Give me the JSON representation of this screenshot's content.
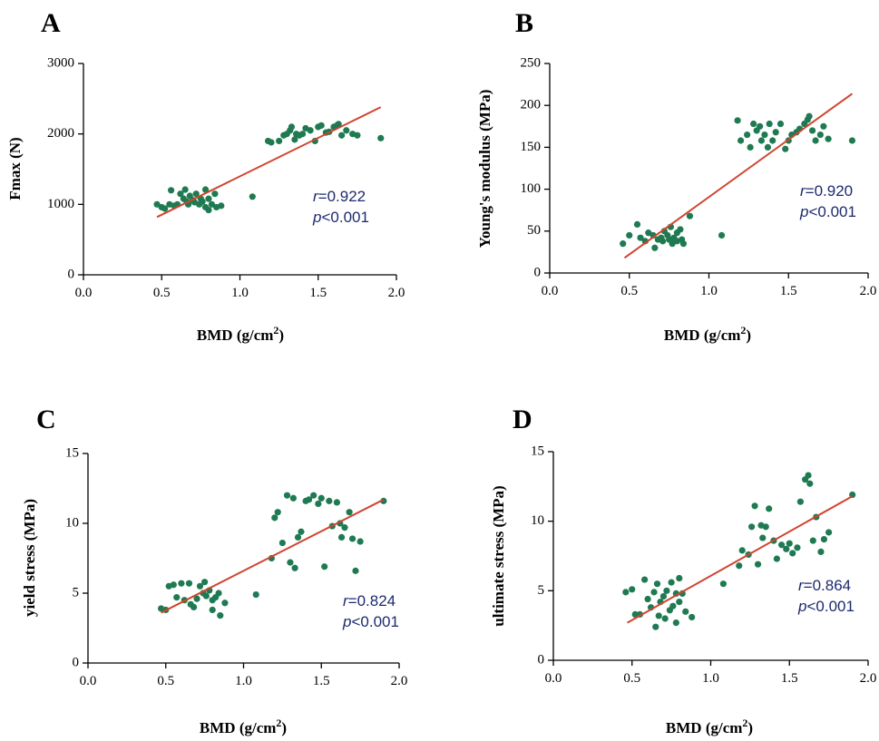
{
  "chart_data": [
    {
      "panel": "A",
      "type": "scatter",
      "xlabel": "BMD (g/cm",
      "xlabel_sup": "2",
      "xlabel_close": ")",
      "ylabel": "Fmax (N)",
      "xlim": [
        0,
        2
      ],
      "ylim": [
        0,
        3000
      ],
      "xticks": [
        0,
        0.5,
        1,
        1.5,
        2
      ],
      "xtick_labels": [
        "0.0",
        "0.5",
        "1.0",
        "1.5",
        "2.0"
      ],
      "yticks": [
        0,
        1000,
        2000,
        3000
      ],
      "ytick_labels": [
        "0",
        "1000",
        "2000",
        "3000"
      ],
      "r_label": "r",
      "r_value": "=0.922",
      "p_label": "p",
      "p_value": "<0.001",
      "fit": [
        [
          0.47,
          820
        ],
        [
          1.9,
          2380
        ]
      ],
      "points": [
        [
          0.47,
          1000
        ],
        [
          0.5,
          960
        ],
        [
          0.52,
          940
        ],
        [
          0.55,
          1000
        ],
        [
          0.56,
          1200
        ],
        [
          0.58,
          980
        ],
        [
          0.6,
          1000
        ],
        [
          0.62,
          1150
        ],
        [
          0.64,
          1080
        ],
        [
          0.65,
          1210
        ],
        [
          0.66,
          1040
        ],
        [
          0.67,
          1000
        ],
        [
          0.68,
          1120
        ],
        [
          0.7,
          1060
        ],
        [
          0.71,
          1030
        ],
        [
          0.72,
          1150
        ],
        [
          0.74,
          1000
        ],
        [
          0.75,
          1080
        ],
        [
          0.76,
          1040
        ],
        [
          0.78,
          1210
        ],
        [
          0.78,
          960
        ],
        [
          0.8,
          1080
        ],
        [
          0.8,
          920
        ],
        [
          0.82,
          1000
        ],
        [
          0.84,
          1150
        ],
        [
          0.85,
          960
        ],
        [
          0.88,
          980
        ],
        [
          1.08,
          1110
        ],
        [
          1.18,
          1900
        ],
        [
          1.2,
          1880
        ],
        [
          1.25,
          1900
        ],
        [
          1.28,
          1980
        ],
        [
          1.3,
          2000
        ],
        [
          1.32,
          2050
        ],
        [
          1.33,
          2100
        ],
        [
          1.35,
          1920
        ],
        [
          1.36,
          2000
        ],
        [
          1.38,
          1980
        ],
        [
          1.4,
          2000
        ],
        [
          1.42,
          2080
        ],
        [
          1.45,
          2050
        ],
        [
          1.48,
          1900
        ],
        [
          1.5,
          2100
        ],
        [
          1.52,
          2120
        ],
        [
          1.55,
          2020
        ],
        [
          1.57,
          2030
        ],
        [
          1.6,
          2100
        ],
        [
          1.62,
          2120
        ],
        [
          1.63,
          2140
        ],
        [
          1.65,
          1980
        ],
        [
          1.68,
          2050
        ],
        [
          1.72,
          2000
        ],
        [
          1.75,
          1980
        ],
        [
          1.9,
          1940
        ]
      ]
    },
    {
      "panel": "B",
      "type": "scatter",
      "xlabel": "BMD (g/cm",
      "xlabel_sup": "2",
      "xlabel_close": ")",
      "ylabel": "Young's modulus (MPa)",
      "xlim": [
        0,
        2
      ],
      "ylim": [
        0,
        250
      ],
      "xticks": [
        0,
        0.5,
        1,
        1.5,
        2
      ],
      "xtick_labels": [
        "0.0",
        "0.5",
        "1.0",
        "1.5",
        "2.0"
      ],
      "yticks": [
        0,
        50,
        100,
        150,
        200,
        250
      ],
      "ytick_labels": [
        "0",
        "50",
        "100",
        "150",
        "200",
        "250"
      ],
      "r_label": "r",
      "r_value": "=0.920",
      "p_label": "p",
      "p_value": "<0.001",
      "fit": [
        [
          0.47,
          18
        ],
        [
          1.9,
          214
        ]
      ],
      "points": [
        [
          0.46,
          35
        ],
        [
          0.5,
          45
        ],
        [
          0.55,
          58
        ],
        [
          0.57,
          42
        ],
        [
          0.6,
          38
        ],
        [
          0.62,
          48
        ],
        [
          0.65,
          45
        ],
        [
          0.66,
          30
        ],
        [
          0.68,
          40
        ],
        [
          0.7,
          42
        ],
        [
          0.71,
          38
        ],
        [
          0.72,
          50
        ],
        [
          0.74,
          45
        ],
        [
          0.75,
          40
        ],
        [
          0.76,
          55
        ],
        [
          0.77,
          35
        ],
        [
          0.78,
          42
        ],
        [
          0.8,
          48
        ],
        [
          0.8,
          38
        ],
        [
          0.82,
          52
        ],
        [
          0.83,
          40
        ],
        [
          0.84,
          35
        ],
        [
          0.88,
          68
        ],
        [
          1.08,
          45
        ],
        [
          1.18,
          182
        ],
        [
          1.2,
          158
        ],
        [
          1.24,
          165
        ],
        [
          1.26,
          150
        ],
        [
          1.28,
          178
        ],
        [
          1.3,
          170
        ],
        [
          1.32,
          175
        ],
        [
          1.33,
          158
        ],
        [
          1.35,
          165
        ],
        [
          1.37,
          150
        ],
        [
          1.38,
          178
        ],
        [
          1.4,
          158
        ],
        [
          1.42,
          168
        ],
        [
          1.45,
          178
        ],
        [
          1.48,
          148
        ],
        [
          1.5,
          158
        ],
        [
          1.52,
          165
        ],
        [
          1.55,
          168
        ],
        [
          1.57,
          172
        ],
        [
          1.6,
          178
        ],
        [
          1.62,
          183
        ],
        [
          1.63,
          187
        ],
        [
          1.65,
          170
        ],
        [
          1.67,
          158
        ],
        [
          1.7,
          165
        ],
        [
          1.72,
          175
        ],
        [
          1.75,
          160
        ],
        [
          1.9,
          158
        ]
      ]
    },
    {
      "panel": "C",
      "type": "scatter",
      "xlabel": "BMD (g/cm",
      "xlabel_sup": "2",
      "xlabel_close": ")",
      "ylabel": "yield stress (MPa)",
      "xlim": [
        0,
        2
      ],
      "ylim": [
        0,
        15
      ],
      "xticks": [
        0,
        0.5,
        1,
        1.5,
        2
      ],
      "xtick_labels": [
        "0.0",
        "0.5",
        "1.0",
        "1.5",
        "2.0"
      ],
      "yticks": [
        0,
        5,
        10,
        15
      ],
      "ytick_labels": [
        "0",
        "5",
        "10",
        "15"
      ],
      "r_label": "r",
      "r_value": "=0.824",
      "p_label": "p",
      "p_value": "<0.001",
      "fit": [
        [
          0.47,
          3.6
        ],
        [
          1.9,
          11.7
        ]
      ],
      "points": [
        [
          0.47,
          3.9
        ],
        [
          0.5,
          3.8
        ],
        [
          0.52,
          5.5
        ],
        [
          0.55,
          5.6
        ],
        [
          0.57,
          4.7
        ],
        [
          0.6,
          5.7
        ],
        [
          0.62,
          4.5
        ],
        [
          0.65,
          5.7
        ],
        [
          0.66,
          4.2
        ],
        [
          0.68,
          4.0
        ],
        [
          0.7,
          4.6
        ],
        [
          0.72,
          5.5
        ],
        [
          0.74,
          5.0
        ],
        [
          0.75,
          5.8
        ],
        [
          0.76,
          4.8
        ],
        [
          0.78,
          5.2
        ],
        [
          0.8,
          4.5
        ],
        [
          0.8,
          3.8
        ],
        [
          0.82,
          4.7
        ],
        [
          0.84,
          5.0
        ],
        [
          0.85,
          3.4
        ],
        [
          0.88,
          4.3
        ],
        [
          1.08,
          4.9
        ],
        [
          1.18,
          7.5
        ],
        [
          1.2,
          10.4
        ],
        [
          1.22,
          10.8
        ],
        [
          1.25,
          8.6
        ],
        [
          1.28,
          12.0
        ],
        [
          1.3,
          7.2
        ],
        [
          1.32,
          11.8
        ],
        [
          1.33,
          6.8
        ],
        [
          1.35,
          9.0
        ],
        [
          1.37,
          9.4
        ],
        [
          1.4,
          11.6
        ],
        [
          1.42,
          11.7
        ],
        [
          1.45,
          12.0
        ],
        [
          1.48,
          11.4
        ],
        [
          1.5,
          11.8
        ],
        [
          1.52,
          6.9
        ],
        [
          1.55,
          11.6
        ],
        [
          1.57,
          9.8
        ],
        [
          1.6,
          11.5
        ],
        [
          1.62,
          10.0
        ],
        [
          1.63,
          9.0
        ],
        [
          1.65,
          9.7
        ],
        [
          1.68,
          10.8
        ],
        [
          1.7,
          8.9
        ],
        [
          1.72,
          6.6
        ],
        [
          1.75,
          8.7
        ],
        [
          1.9,
          11.6
        ]
      ]
    },
    {
      "panel": "D",
      "type": "scatter",
      "xlabel": "BMD (g/cm",
      "xlabel_sup": "2",
      "xlabel_close": ")",
      "ylabel": "ultimate stress (MPa)",
      "xlim": [
        0,
        2
      ],
      "ylim": [
        0,
        15
      ],
      "xticks": [
        0,
        0.5,
        1,
        1.5,
        2
      ],
      "xtick_labels": [
        "0.0",
        "0.5",
        "1.0",
        "1.5",
        "2.0"
      ],
      "yticks": [
        0,
        5,
        10,
        15
      ],
      "ytick_labels": [
        "0",
        "5",
        "10",
        "15"
      ],
      "r_label": "r",
      "r_value": "=0.864",
      "p_label": "p",
      "p_value": "<0.001",
      "fit": [
        [
          0.47,
          2.7
        ],
        [
          1.9,
          11.8
        ]
      ],
      "points": [
        [
          0.46,
          4.9
        ],
        [
          0.5,
          5.1
        ],
        [
          0.52,
          3.3
        ],
        [
          0.55,
          3.3
        ],
        [
          0.58,
          5.8
        ],
        [
          0.6,
          4.4
        ],
        [
          0.62,
          3.8
        ],
        [
          0.64,
          4.9
        ],
        [
          0.65,
          2.4
        ],
        [
          0.66,
          5.5
        ],
        [
          0.67,
          3.2
        ],
        [
          0.68,
          4.2
        ],
        [
          0.7,
          4.6
        ],
        [
          0.71,
          3.0
        ],
        [
          0.72,
          5.0
        ],
        [
          0.74,
          3.6
        ],
        [
          0.75,
          5.6
        ],
        [
          0.76,
          3.9
        ],
        [
          0.78,
          4.8
        ],
        [
          0.78,
          2.7
        ],
        [
          0.8,
          5.9
        ],
        [
          0.8,
          4.2
        ],
        [
          0.82,
          4.8
        ],
        [
          0.84,
          3.5
        ],
        [
          0.88,
          3.1
        ],
        [
          1.08,
          5.5
        ],
        [
          1.18,
          6.8
        ],
        [
          1.2,
          7.9
        ],
        [
          1.24,
          7.6
        ],
        [
          1.26,
          9.6
        ],
        [
          1.28,
          11.1
        ],
        [
          1.3,
          6.9
        ],
        [
          1.32,
          9.7
        ],
        [
          1.33,
          8.8
        ],
        [
          1.35,
          9.6
        ],
        [
          1.37,
          10.9
        ],
        [
          1.4,
          8.6
        ],
        [
          1.42,
          7.3
        ],
        [
          1.45,
          8.3
        ],
        [
          1.48,
          8.0
        ],
        [
          1.5,
          8.4
        ],
        [
          1.52,
          7.7
        ],
        [
          1.55,
          8.1
        ],
        [
          1.57,
          11.4
        ],
        [
          1.6,
          13.0
        ],
        [
          1.62,
          13.3
        ],
        [
          1.63,
          12.7
        ],
        [
          1.65,
          8.6
        ],
        [
          1.67,
          10.3
        ],
        [
          1.7,
          7.8
        ],
        [
          1.72,
          8.7
        ],
        [
          1.75,
          9.2
        ],
        [
          1.9,
          11.9
        ]
      ]
    }
  ]
}
